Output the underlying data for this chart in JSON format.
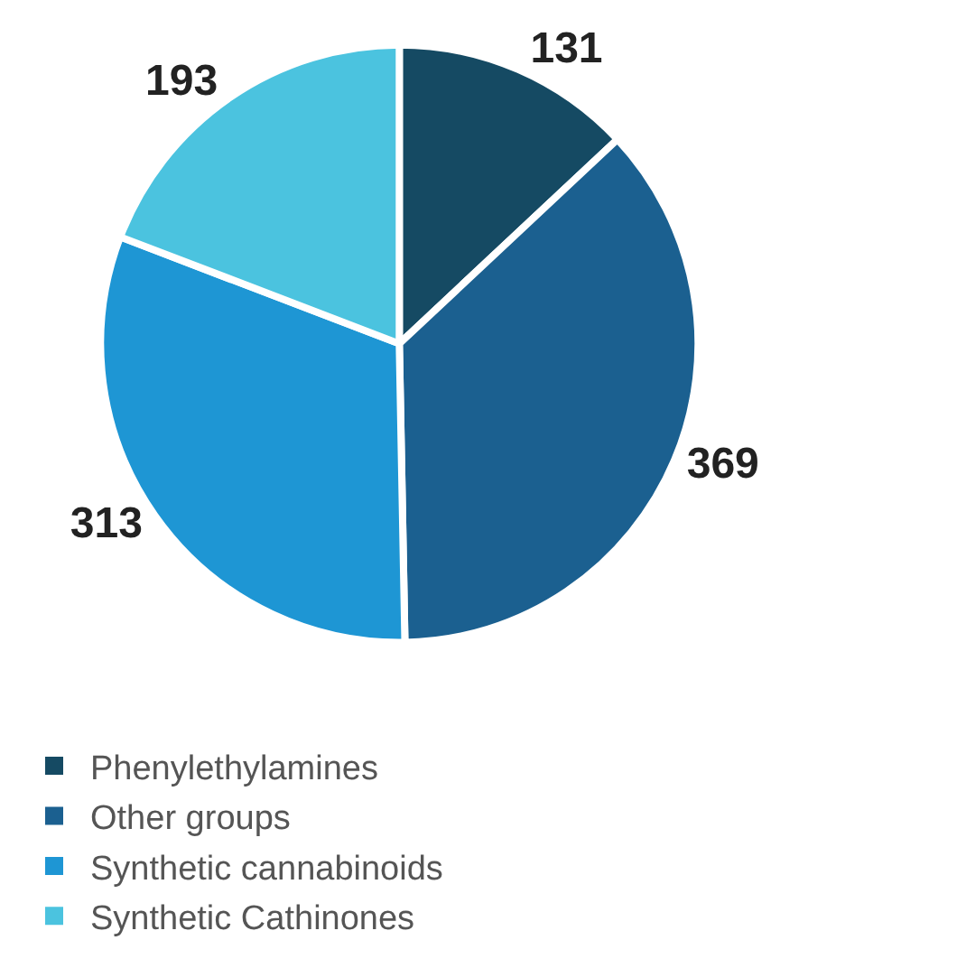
{
  "chart_data": {
    "type": "pie",
    "categories": [
      "Phenylethylamines",
      "Other groups",
      "Synthetic cannabinoids",
      "Synthetic Cathinones"
    ],
    "values": [
      131,
      369,
      313,
      193
    ],
    "colors": [
      "#154a63",
      "#1b6090",
      "#1e96d4",
      "#4bc3df"
    ],
    "data_labels": true,
    "legend": "bottom"
  }
}
